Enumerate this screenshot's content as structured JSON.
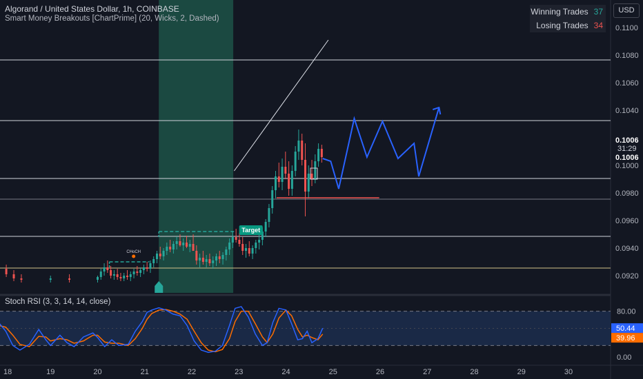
{
  "header": {
    "title": "Algorand / United States Dollar, 1h, COINBASE",
    "indicator": "Smart Money Breakouts [ChartPrime] (20, Wicks, 2, Dashed)",
    "currency": "USD"
  },
  "stats": {
    "winning_label": "Winning Trades",
    "winning_value": "37",
    "losing_label": "Losing Trades",
    "losing_value": "34"
  },
  "rsi_panel": {
    "title": "Stoch RSI (3, 3, 14, 14, close)",
    "ticks": [
      {
        "value": 80,
        "label": "80.00"
      },
      {
        "value": 0,
        "label": "0.00"
      }
    ],
    "band_upper": 80,
    "band_lower": 20,
    "k_label": "50.44",
    "d_label": "39.96",
    "k_value": 50.44,
    "d_value": 39.96,
    "k_color": "#2962ff",
    "d_color": "#ff6d00"
  },
  "chart_data": {
    "type": "candlestick",
    "symbol": "ALGO/USD",
    "interval": "1h",
    "price_axis": {
      "ticks": [
        "0.1100",
        "0.1080",
        "0.1060",
        "0.1040",
        "0.1000",
        "0.0980",
        "0.0960",
        "0.0940",
        "0.0920"
      ],
      "range": [
        0.0915,
        0.1115
      ]
    },
    "last_price": {
      "value": "0.1006",
      "countdown": "31:29",
      "value2": "0.1006"
    },
    "date_axis": [
      "18",
      "19",
      "20",
      "21",
      "22",
      "23",
      "24",
      "25",
      "26",
      "27",
      "28",
      "29",
      "30"
    ],
    "horizontal_levels": [
      {
        "price": 0.10765,
        "color": "#d1d4dc"
      },
      {
        "price": 0.10325,
        "color": "#d1d4dc"
      },
      {
        "price": 0.09905,
        "color": "#d1d4dc"
      },
      {
        "price": 0.09755,
        "color": "#787b86"
      },
      {
        "price": 0.09485,
        "color": "#d1d4dc"
      },
      {
        "price": 0.09255,
        "color": "#d4c48a"
      }
    ],
    "trend_line": {
      "from": {
        "day": 22.9,
        "price": 0.0996
      },
      "to": {
        "day": 24.9,
        "price": 0.1091
      }
    },
    "highlight_zone": {
      "from_day": 21.3,
      "to_day": 22.88,
      "color": "#1f5b4c"
    },
    "breakout_boxes": [
      {
        "from_day": 20.25,
        "to_day": 21.1,
        "price": 0.093
      },
      {
        "from_day": 21.3,
        "to_day": 22.9,
        "price": 0.0952
      }
    ],
    "markers": [
      {
        "label": "CHoCH",
        "day": 20.75,
        "price": 0.0937
      },
      {
        "label": "Target",
        "day": 23.27,
        "price": 0.0953
      }
    ],
    "support_segment": {
      "from_day": 23.8,
      "to_day": 25.98,
      "price": 0.09765,
      "color": "#ef5350"
    },
    "projection_path": [
      [
        24.78,
        0.1005
      ],
      [
        24.95,
        0.1003
      ],
      [
        25.12,
        0.0983
      ],
      [
        25.45,
        0.1034
      ],
      [
        25.72,
        0.1006
      ],
      [
        26.05,
        0.1032
      ],
      [
        26.38,
        0.1005
      ],
      [
        26.72,
        0.1016
      ],
      [
        26.82,
        0.0992
      ],
      [
        27.25,
        0.1042
      ]
    ],
    "candles": [
      [
        17.9,
        0.0928,
        0.093,
        0.0921,
        0.0925
      ],
      [
        18.06,
        0.0925,
        0.0928,
        0.0919,
        0.0921
      ],
      [
        18.22,
        0.0921,
        0.0924,
        0.0916,
        0.0918
      ],
      [
        18.38,
        0.0918,
        0.0921,
        0.0915,
        0.0917
      ],
      [
        19.0,
        0.0917,
        0.092,
        0.0915,
        0.0918
      ],
      [
        19.4,
        0.0918,
        0.0921,
        0.0915,
        0.0917
      ],
      [
        20.0,
        0.0917,
        0.092,
        0.0915,
        0.0919
      ],
      [
        20.07,
        0.0919,
        0.0925,
        0.0917,
        0.0923
      ],
      [
        20.14,
        0.0923,
        0.0929,
        0.092,
        0.0926
      ],
      [
        20.21,
        0.0926,
        0.0931,
        0.0922,
        0.0924
      ],
      [
        20.28,
        0.0924,
        0.0927,
        0.0918,
        0.092
      ],
      [
        20.35,
        0.092,
        0.0924,
        0.0917,
        0.0921
      ],
      [
        20.42,
        0.0921,
        0.0925,
        0.0917,
        0.0919
      ],
      [
        20.49,
        0.0919,
        0.0922,
        0.0916,
        0.0918
      ],
      [
        20.56,
        0.0918,
        0.0922,
        0.0916,
        0.092
      ],
      [
        20.63,
        0.092,
        0.0924,
        0.0917,
        0.0919
      ],
      [
        20.7,
        0.0919,
        0.0923,
        0.0916,
        0.0921
      ],
      [
        20.77,
        0.0921,
        0.0925,
        0.0918,
        0.0923
      ],
      [
        20.84,
        0.0923,
        0.0927,
        0.092,
        0.0922
      ],
      [
        20.91,
        0.0922,
        0.0926,
        0.0919,
        0.0924
      ],
      [
        20.98,
        0.0924,
        0.0928,
        0.0921,
        0.0926
      ],
      [
        21.05,
        0.0926,
        0.093,
        0.0923,
        0.0925
      ],
      [
        21.12,
        0.0925,
        0.0931,
        0.0922,
        0.0929
      ],
      [
        21.19,
        0.0929,
        0.0934,
        0.0926,
        0.0932
      ],
      [
        21.26,
        0.0932,
        0.0938,
        0.0929,
        0.0936
      ],
      [
        21.33,
        0.0936,
        0.0941,
        0.0932,
        0.0934
      ],
      [
        21.4,
        0.0934,
        0.094,
        0.0931,
        0.0938
      ],
      [
        21.47,
        0.0938,
        0.0944,
        0.0935,
        0.0941
      ],
      [
        21.54,
        0.0941,
        0.0946,
        0.0937,
        0.0939
      ],
      [
        21.61,
        0.0939,
        0.0945,
        0.0936,
        0.0943
      ],
      [
        21.68,
        0.0943,
        0.0948,
        0.0939,
        0.0945
      ],
      [
        21.75,
        0.0945,
        0.095,
        0.0941,
        0.0942
      ],
      [
        21.82,
        0.0942,
        0.0947,
        0.0938,
        0.0944
      ],
      [
        21.89,
        0.0944,
        0.0949,
        0.094,
        0.0941
      ],
      [
        21.96,
        0.0941,
        0.0946,
        0.0937,
        0.0943
      ],
      [
        22.03,
        0.0943,
        0.095,
        0.0939,
        0.0938
      ],
      [
        22.1,
        0.0938,
        0.0942,
        0.0928,
        0.0931
      ],
      [
        22.17,
        0.0931,
        0.0936,
        0.0926,
        0.0933
      ],
      [
        22.24,
        0.0933,
        0.0938,
        0.0928,
        0.093
      ],
      [
        22.31,
        0.093,
        0.0935,
        0.0926,
        0.0932
      ],
      [
        22.38,
        0.0932,
        0.0936,
        0.0927,
        0.0929
      ],
      [
        22.45,
        0.0929,
        0.0934,
        0.0925,
        0.0931
      ],
      [
        22.52,
        0.0931,
        0.0936,
        0.0927,
        0.0934
      ],
      [
        22.59,
        0.0934,
        0.0938,
        0.0929,
        0.0932
      ],
      [
        22.66,
        0.0932,
        0.0937,
        0.0928,
        0.0935
      ],
      [
        22.73,
        0.0935,
        0.0941,
        0.0931,
        0.0939
      ],
      [
        22.8,
        0.0939,
        0.0947,
        0.0935,
        0.0944
      ],
      [
        22.87,
        0.0944,
        0.0952,
        0.094,
        0.0948
      ],
      [
        22.94,
        0.0948,
        0.0954,
        0.0944,
        0.0946
      ],
      [
        23.01,
        0.0946,
        0.0951,
        0.0941,
        0.0943
      ],
      [
        23.08,
        0.0943,
        0.0948,
        0.0935,
        0.0938
      ],
      [
        23.15,
        0.0938,
        0.0943,
        0.0933,
        0.094
      ],
      [
        23.22,
        0.094,
        0.0945,
        0.0934,
        0.0936
      ],
      [
        23.29,
        0.0936,
        0.0942,
        0.0932,
        0.094
      ],
      [
        23.36,
        0.094,
        0.0946,
        0.0936,
        0.0944
      ],
      [
        23.43,
        0.0944,
        0.095,
        0.0939,
        0.0946
      ],
      [
        23.5,
        0.0946,
        0.0955,
        0.0942,
        0.0952
      ],
      [
        23.57,
        0.0952,
        0.0961,
        0.0948,
        0.0959
      ],
      [
        23.64,
        0.0959,
        0.0972,
        0.0955,
        0.0969
      ],
      [
        23.71,
        0.0969,
        0.0985,
        0.0965,
        0.0982
      ],
      [
        23.78,
        0.0982,
        0.0996,
        0.0976,
        0.0992
      ],
      [
        23.85,
        0.0992,
        0.1002,
        0.0984,
        0.0988
      ],
      [
        23.92,
        0.0988,
        0.1005,
        0.0982,
        0.0999
      ],
      [
        23.99,
        0.0999,
        0.101,
        0.099,
        0.0994
      ],
      [
        24.06,
        0.0994,
        0.1003,
        0.0978,
        0.0983
      ],
      [
        24.13,
        0.0983,
        0.1,
        0.0978,
        0.0996
      ],
      [
        24.2,
        0.0996,
        0.1014,
        0.0992,
        0.101
      ],
      [
        24.27,
        0.101,
        0.1026,
        0.1004,
        0.1018
      ],
      [
        24.34,
        0.1018,
        0.1023,
        0.1,
        0.1004
      ],
      [
        24.41,
        0.1004,
        0.1016,
        0.0963,
        0.0981
      ],
      [
        24.48,
        0.0981,
        0.1,
        0.0976,
        0.0994
      ],
      [
        24.55,
        0.0994,
        0.1004,
        0.0985,
        0.099
      ],
      [
        24.62,
        0.099,
        0.1008,
        0.0987,
        0.1003
      ],
      [
        24.69,
        0.1003,
        0.1016,
        0.0999,
        0.1012
      ],
      [
        24.76,
        0.1012,
        0.1015,
        0.1002,
        0.1006
      ]
    ],
    "rsi_k": [
      [
        17.9,
        60
      ],
      [
        18.05,
        45
      ],
      [
        18.2,
        20
      ],
      [
        18.35,
        12
      ],
      [
        18.55,
        22
      ],
      [
        18.75,
        48
      ],
      [
        18.9,
        30
      ],
      [
        19.0,
        20
      ],
      [
        19.2,
        38
      ],
      [
        19.35,
        25
      ],
      [
        19.5,
        18
      ],
      [
        19.7,
        35
      ],
      [
        19.9,
        42
      ],
      [
        20.0,
        34
      ],
      [
        20.15,
        18
      ],
      [
        20.3,
        30
      ],
      [
        20.45,
        20
      ],
      [
        20.65,
        22
      ],
      [
        20.8,
        45
      ],
      [
        20.95,
        62
      ],
      [
        21.05,
        78
      ],
      [
        21.15,
        82
      ],
      [
        21.3,
        86
      ],
      [
        21.45,
        82
      ],
      [
        21.6,
        75
      ],
      [
        21.75,
        72
      ],
      [
        21.9,
        55
      ],
      [
        22.05,
        28
      ],
      [
        22.2,
        12
      ],
      [
        22.35,
        8
      ],
      [
        22.5,
        10
      ],
      [
        22.65,
        20
      ],
      [
        22.8,
        55
      ],
      [
        22.92,
        85
      ],
      [
        23.05,
        88
      ],
      [
        23.2,
        70
      ],
      [
        23.35,
        40
      ],
      [
        23.5,
        20
      ],
      [
        23.6,
        25
      ],
      [
        23.72,
        60
      ],
      [
        23.85,
        85
      ],
      [
        24.0,
        82
      ],
      [
        24.12,
        58
      ],
      [
        24.25,
        30
      ],
      [
        24.35,
        32
      ],
      [
        24.45,
        45
      ],
      [
        24.55,
        25
      ],
      [
        24.68,
        32
      ],
      [
        24.78,
        50.44
      ]
    ],
    "rsi_d": [
      [
        17.9,
        55
      ],
      [
        18.05,
        52
      ],
      [
        18.2,
        38
      ],
      [
        18.35,
        22
      ],
      [
        18.55,
        18
      ],
      [
        18.75,
        36
      ],
      [
        18.9,
        35
      ],
      [
        19.0,
        28
      ],
      [
        19.2,
        32
      ],
      [
        19.35,
        30
      ],
      [
        19.5,
        24
      ],
      [
        19.7,
        28
      ],
      [
        19.9,
        38
      ],
      [
        20.0,
        38
      ],
      [
        20.15,
        26
      ],
      [
        20.3,
        24
      ],
      [
        20.45,
        24
      ],
      [
        20.65,
        20
      ],
      [
        20.8,
        32
      ],
      [
        20.95,
        50
      ],
      [
        21.05,
        66
      ],
      [
        21.15,
        76
      ],
      [
        21.3,
        82
      ],
      [
        21.45,
        83
      ],
      [
        21.6,
        80
      ],
      [
        21.75,
        75
      ],
      [
        21.9,
        66
      ],
      [
        22.05,
        45
      ],
      [
        22.2,
        25
      ],
      [
        22.35,
        12
      ],
      [
        22.5,
        9
      ],
      [
        22.65,
        13
      ],
      [
        22.8,
        32
      ],
      [
        22.92,
        62
      ],
      [
        23.05,
        80
      ],
      [
        23.2,
        80
      ],
      [
        23.35,
        58
      ],
      [
        23.5,
        35
      ],
      [
        23.6,
        25
      ],
      [
        23.72,
        40
      ],
      [
        23.85,
        68
      ],
      [
        24.0,
        82
      ],
      [
        24.12,
        72
      ],
      [
        24.25,
        48
      ],
      [
        24.35,
        35
      ],
      [
        24.45,
        38
      ],
      [
        24.55,
        34
      ],
      [
        24.68,
        30
      ],
      [
        24.78,
        39.96
      ]
    ]
  }
}
